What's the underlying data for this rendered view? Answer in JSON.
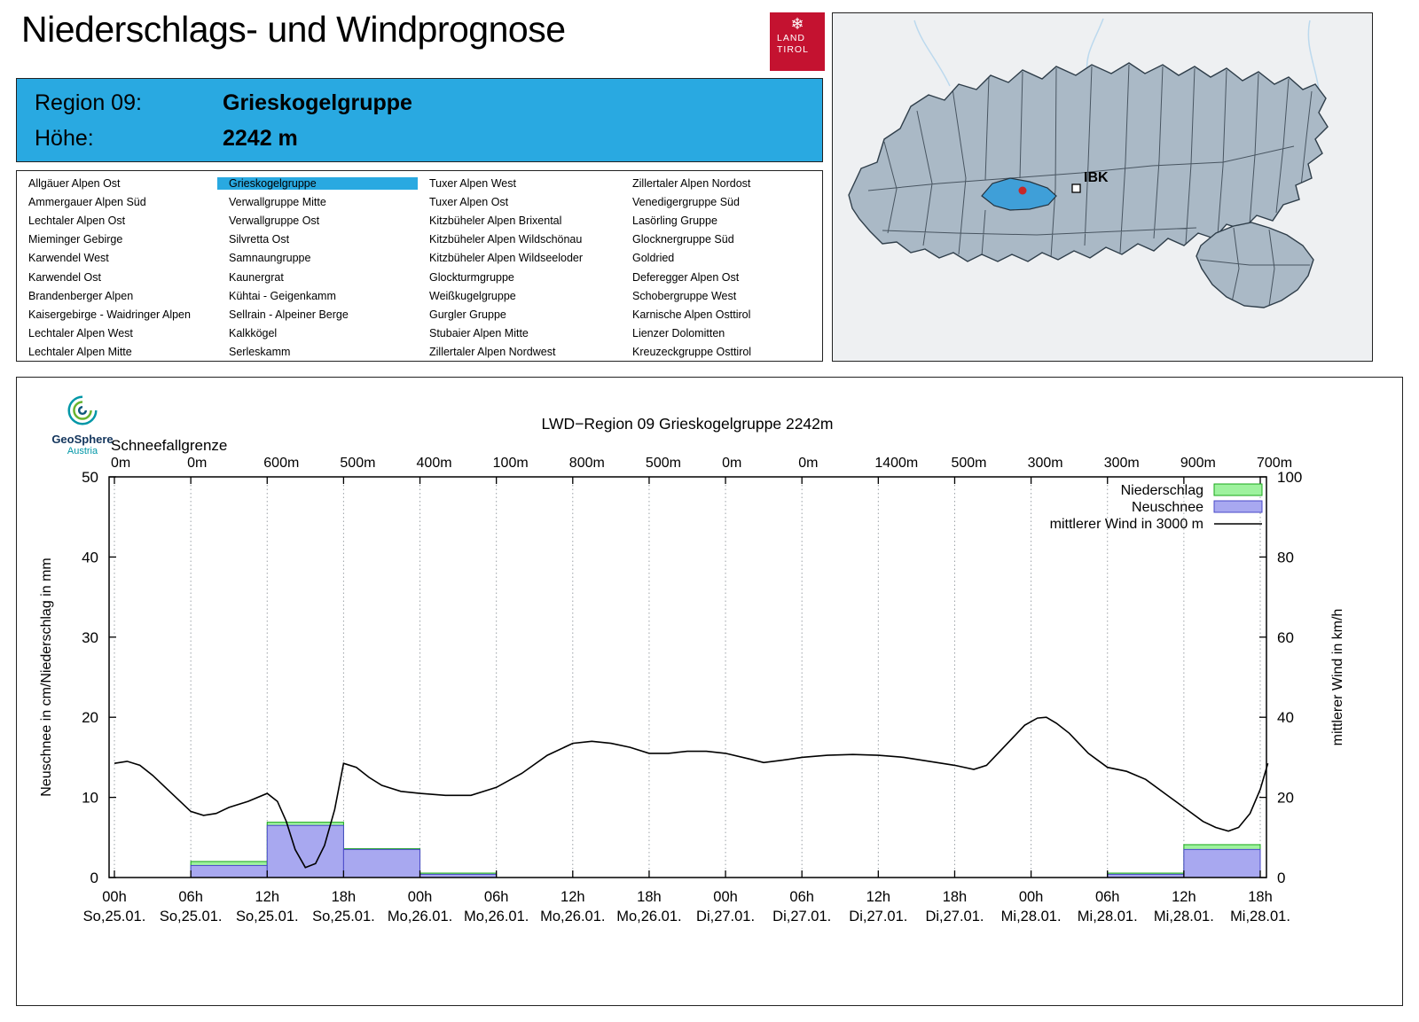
{
  "header": {
    "title": "Niederschlags- und Windprognose"
  },
  "logo": {
    "line1": "LAND",
    "line2": "TIROL"
  },
  "map": {
    "ibk_label": "IBK"
  },
  "region_banner": {
    "region_label": "Region 09:",
    "region_name": "Grieskogelgruppe",
    "hoehe_label": "Höhe:",
    "hoehe_value": "2242 m"
  },
  "region_list": {
    "selected": "Grieskogelgruppe",
    "columns": [
      [
        "Allgäuer Alpen Ost",
        "Ammergauer Alpen Süd",
        "Lechtaler Alpen Ost",
        "Mieminger Gebirge",
        "Karwendel West",
        "Karwendel Ost",
        "Brandenberger Alpen",
        "Kaisergebirge - Waidringer Alpen",
        "Lechtaler Alpen West",
        "Lechtaler Alpen Mitte"
      ],
      [
        "Grieskogelgruppe",
        "Verwallgruppe Mitte",
        "Verwallgruppe Ost",
        "Silvretta Ost",
        "Samnaungruppe",
        "Kaunergrat",
        "Kühtai - Geigenkamm",
        "Sellrain - Alpeiner Berge",
        "Kalkkögel",
        "Serleskamm"
      ],
      [
        "Tuxer Alpen West",
        "Tuxer Alpen Ost",
        "Kitzbüheler Alpen Brixental",
        "Kitzbüheler Alpen Wildschönau",
        "Kitzbüheler Alpen Wildseeloder",
        "Glockturmgruppe",
        "Weißkugelgruppe",
        "Gurgler Gruppe",
        "Stubaier Alpen Mitte",
        "Zillertaler Alpen Nordwest"
      ],
      [
        "Zillertaler Alpen Nordost",
        "Venedigergruppe Süd",
        "Lasörling Gruppe",
        "Glocknergruppe Süd",
        "Goldried",
        "Deferegger Alpen Ost",
        "Schobergruppe West",
        "Karnische Alpen Osttirol",
        "Lienzer Dolomitten",
        "Kreuzeckgruppe Osttirol"
      ]
    ]
  },
  "colors": {
    "accent_blue": "#29a9e1",
    "map_region": "#aab9c6",
    "map_highlight": "#3f9fd8",
    "logo_red": "#c41230"
  },
  "branding": {
    "name": "GeoSphere",
    "sub": "Austria"
  },
  "chart_data": {
    "type": "bar",
    "title": "LWD−Region 09 Grieskogelgruppe 2242m",
    "snowline": {
      "label": "Schneefallgrenze",
      "values": [
        "0m",
        "0m",
        "600m",
        "500m",
        "400m",
        "100m",
        "800m",
        "500m",
        "0m",
        "0m",
        "1400m",
        "500m",
        "300m",
        "300m",
        "900m",
        "700m"
      ]
    },
    "x_hours": [
      "00h",
      "06h",
      "12h",
      "18h",
      "00h",
      "06h",
      "12h",
      "18h",
      "00h",
      "06h",
      "12h",
      "18h",
      "00h",
      "06h",
      "12h",
      "18h"
    ],
    "x_dates": [
      "So,25.01.",
      "So,25.01.",
      "So,25.01.",
      "So,25.01.",
      "Mo,26.01.",
      "Mo,26.01.",
      "Mo,26.01.",
      "Mo,26.01.",
      "Di,27.01.",
      "Di,27.01.",
      "Di,27.01.",
      "Di,27.01.",
      "Mi,28.01.",
      "Mi,28.01.",
      "Mi,28.01.",
      "Mi,28.01."
    ],
    "ylabel_left": "Neuschnee in cm/Niederschlag in mm",
    "ylabel_right": "mittlerer Wind in km/h",
    "ylim_left": [
      0,
      50
    ],
    "ylim_right": [
      0,
      100
    ],
    "yticks_left": [
      0,
      10,
      20,
      30,
      40,
      50
    ],
    "yticks_right": [
      0,
      20,
      40,
      60,
      80,
      100
    ],
    "legend": [
      {
        "label": "Niederschlag",
        "type": "box",
        "fill": "#9ef29e",
        "stroke": "#18a818"
      },
      {
        "label": "Neuschnee",
        "type": "box",
        "fill": "#a8a8f0",
        "stroke": "#4848c8"
      },
      {
        "label": "mittlerer Wind in 3000 m",
        "type": "line",
        "stroke": "#000000"
      }
    ],
    "series": {
      "niederschlag_mm": [
        0,
        2.0,
        6.9,
        3.6,
        0.55,
        0,
        0,
        0,
        0,
        0,
        0,
        0,
        0,
        0.55,
        4.1,
        0
      ],
      "neuschnee_cm": [
        0,
        1.5,
        6.5,
        3.5,
        0.4,
        0,
        0,
        0,
        0,
        0,
        0,
        0,
        0,
        0.4,
        3.5,
        0
      ],
      "wind_kmh": [
        [
          0,
          28.5
        ],
        [
          1,
          29
        ],
        [
          2,
          28
        ],
        [
          3,
          25.5
        ],
        [
          4.5,
          21
        ],
        [
          6,
          16.5
        ],
        [
          7,
          15.5
        ],
        [
          8,
          16
        ],
        [
          9,
          17.5
        ],
        [
          10.5,
          19
        ],
        [
          12,
          21
        ],
        [
          12.8,
          19
        ],
        [
          13.5,
          14
        ],
        [
          14.2,
          7
        ],
        [
          15,
          2.5
        ],
        [
          15.8,
          3.5
        ],
        [
          16.5,
          8
        ],
        [
          17.3,
          17
        ],
        [
          18,
          28.5
        ],
        [
          19,
          27.5
        ],
        [
          20,
          25
        ],
        [
          21,
          23
        ],
        [
          22.5,
          21.5
        ],
        [
          24,
          21
        ],
        [
          26,
          20.5
        ],
        [
          28,
          20.5
        ],
        [
          30,
          22.5
        ],
        [
          32,
          26
        ],
        [
          34,
          30.5
        ],
        [
          36,
          33.5
        ],
        [
          37.5,
          34
        ],
        [
          39,
          33.5
        ],
        [
          40.5,
          32.5
        ],
        [
          42,
          31
        ],
        [
          43.5,
          31
        ],
        [
          45,
          31.5
        ],
        [
          46.5,
          31.5
        ],
        [
          48,
          31
        ],
        [
          50,
          29.5
        ],
        [
          51,
          28.7
        ],
        [
          52.5,
          29.3
        ],
        [
          54,
          30
        ],
        [
          56,
          30.5
        ],
        [
          58,
          30.7
        ],
        [
          60,
          30.5
        ],
        [
          62,
          30
        ],
        [
          64,
          29
        ],
        [
          66,
          28
        ],
        [
          67.5,
          27
        ],
        [
          68.5,
          28
        ],
        [
          70,
          33
        ],
        [
          71.5,
          38
        ],
        [
          72.5,
          39.8
        ],
        [
          73.2,
          40
        ],
        [
          74,
          38.5
        ],
        [
          75,
          36
        ],
        [
          76.5,
          31
        ],
        [
          78,
          27.5
        ],
        [
          79.5,
          26.5
        ],
        [
          81,
          24.5
        ],
        [
          82.5,
          21
        ],
        [
          84,
          17.5
        ],
        [
          85.5,
          14
        ],
        [
          86.5,
          12.5
        ],
        [
          87.5,
          11.6
        ],
        [
          88.3,
          12.5
        ],
        [
          89.2,
          16
        ],
        [
          90,
          22
        ],
        [
          90.6,
          28.5
        ]
      ]
    }
  }
}
